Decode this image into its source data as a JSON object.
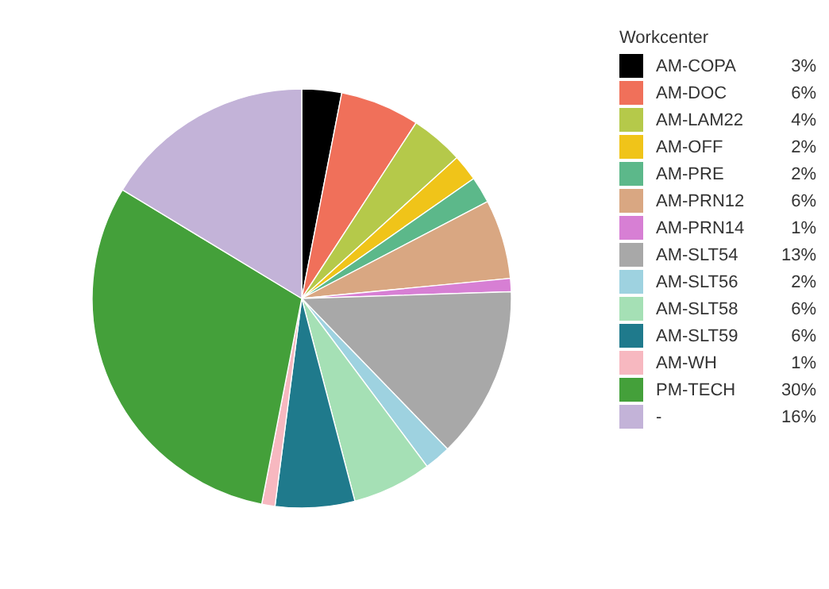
{
  "chart_data": {
    "type": "pie",
    "legend_title": "Workcenter",
    "legend": "right",
    "categories": [
      "AM-COPA",
      "AM-DOC",
      "AM-LAM22",
      "AM-OFF",
      "AM-PRE",
      "AM-PRN12",
      "AM-PRN14",
      "AM-SLT54",
      "AM-SLT56",
      "AM-SLT58",
      "AM-SLT59",
      "AM-WH",
      "PM-TECH",
      "-"
    ],
    "values": [
      3,
      6,
      4,
      2,
      2,
      6,
      1,
      13,
      2,
      6,
      6,
      1,
      30,
      16
    ],
    "value_labels": [
      "3%",
      "6%",
      "4%",
      "2%",
      "2%",
      "6%",
      "1%",
      "13%",
      "2%",
      "6%",
      "6%",
      "1%",
      "30%",
      "16%"
    ],
    "colors": [
      "#000000",
      "#f0705a",
      "#b5c94a",
      "#f0c419",
      "#5cb88a",
      "#d9a782",
      "#d77fd4",
      "#a8a8a8",
      "#9ed2e0",
      "#a5e0b5",
      "#1f7a8c",
      "#f7b8c0",
      "#44a03a",
      "#c3b3d8"
    ]
  }
}
